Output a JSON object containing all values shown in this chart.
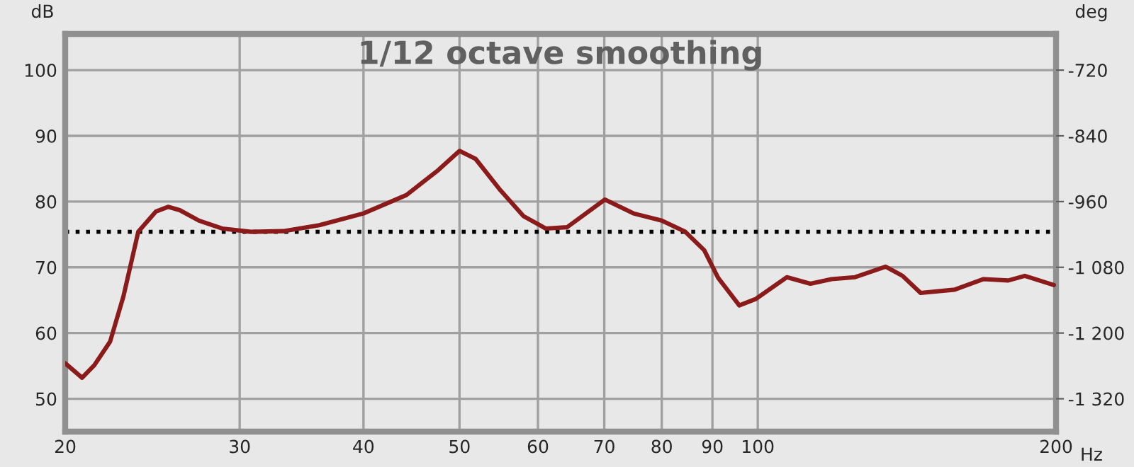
{
  "chart_data": {
    "type": "line",
    "title": "1/12 octave smoothing",
    "xlabel": "Hz",
    "ylabel": "dB",
    "y2label": "deg",
    "log": "x",
    "xlim": [
      20,
      200
    ],
    "xticks": [
      20,
      30,
      40,
      50,
      60,
      70,
      80,
      90,
      100,
      200
    ],
    "ylim": [
      45,
      105.5
    ],
    "yticks": [
      50,
      60,
      70,
      80,
      90,
      100
    ],
    "y2lim": [
      -1380,
      -654
    ],
    "y2ticks": [
      -720,
      -840,
      -960,
      {
        "value": -1080,
        "label": "-1 080"
      },
      {
        "value": -1200,
        "label": "-1 200"
      },
      {
        "value": -1320,
        "label": "-1 320"
      }
    ],
    "grid": true,
    "line_style": "solid",
    "marker": "none",
    "ref_lines": [
      {
        "axis": "y",
        "value": 75.4,
        "color": "#000000",
        "line_style": "dotted"
      }
    ],
    "series": [
      {
        "color": "#8b1a1a",
        "x": [
          20,
          20.8,
          21.4,
          22.2,
          22.9,
          23.7,
          24.7,
          25.4,
          26.1,
          27.3,
          28.8,
          30.8,
          33.2,
          36.1,
          40.0,
          44.2,
          47.6,
          50.0,
          51.9,
          55.0,
          58.0,
          61.1,
          64.2,
          70.1,
          74.9,
          80.0,
          84.5,
          88.3,
          91.2,
          95.8,
          99.6,
          107,
          113,
          118.7,
          125.4,
          134.6,
          140,
          146,
          158,
          169,
          179,
          186,
          199
        ],
        "values": [
          55.4,
          53.2,
          55.1,
          58.7,
          65.6,
          75.4,
          78.5,
          79.2,
          78.7,
          77.1,
          75.9,
          75.4,
          75.5,
          76.4,
          78.2,
          81.0,
          84.8,
          87.7,
          86.5,
          81.7,
          77.8,
          75.9,
          76.1,
          80.3,
          78.2,
          77.1,
          75.4,
          72.6,
          68.4,
          64.2,
          65.2,
          68.5,
          67.5,
          68.2,
          68.5,
          70.1,
          68.7,
          66.1,
          66.6,
          68.2,
          68.0,
          68.7,
          67.3
        ]
      }
    ]
  }
}
